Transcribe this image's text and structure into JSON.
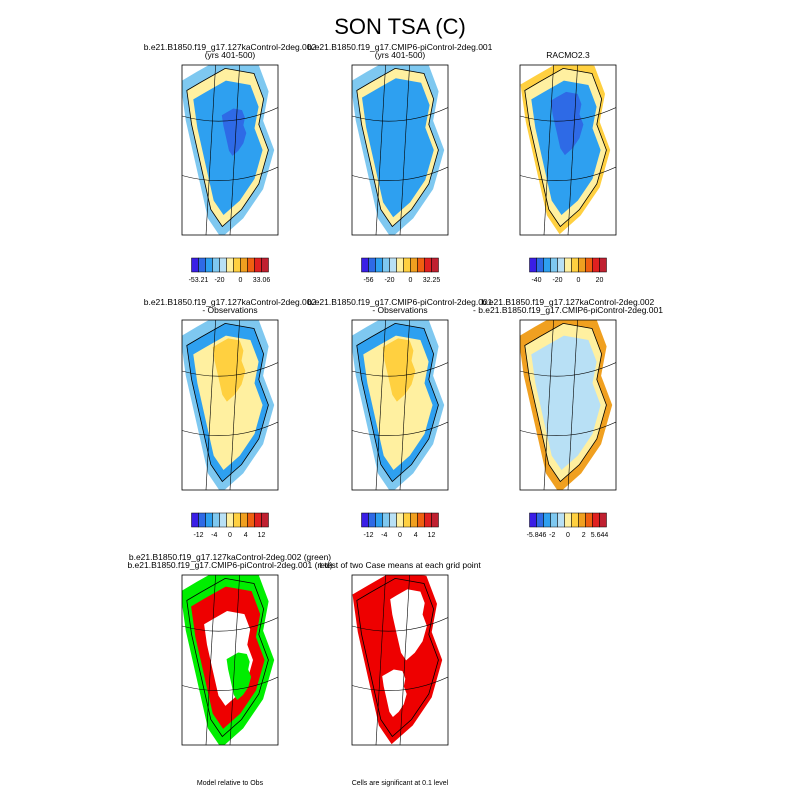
{
  "title": "SON TSA (C)",
  "colorbar_colors": [
    "#3a1ee6",
    "#2e6ae6",
    "#2ea0f0",
    "#7ec8f0",
    "#b8e0f5",
    "#fff0a0",
    "#ffd040",
    "#f0a020",
    "#f06010",
    "#e02020",
    "#c02030"
  ],
  "panels": [
    {
      "title": [
        "b.e21.B1850.f19_g17.127kaControl-2deg.002",
        "(yrs 401-500)"
      ],
      "colorbar_labels": [
        "-53.21",
        "-20",
        "0",
        "33.06"
      ]
    },
    {
      "title": [
        "b.e21.B1850.f19_g17.CMIP6-piControl-2deg.001",
        "(yrs 401-500)"
      ],
      "colorbar_labels": [
        "-56",
        "-20",
        "0",
        "32.25"
      ]
    },
    {
      "title": [
        "RACMO2.3"
      ],
      "colorbar_labels": [
        "-40",
        "-20",
        "0",
        "20"
      ]
    },
    {
      "title": [
        "b.e21.B1850.f19_g17.127kaControl-2deg.002",
        "- Observations"
      ],
      "colorbar_labels": [
        "-12",
        "-4",
        "0",
        "4",
        "12"
      ]
    },
    {
      "title": [
        "b.e21.B1850.f19_g17.CMIP6-piControl-2deg.001",
        "- Observations"
      ],
      "colorbar_labels": [
        "-12",
        "-4",
        "0",
        "4",
        "12"
      ]
    },
    {
      "title": [
        "b.e21.B1850.f19_g17.127kaControl-2deg.002",
        "- b.e21.B1850.f19_g17.CMIP6-piControl-2deg.001"
      ],
      "colorbar_labels": [
        "-5.846",
        "-2",
        "0",
        "2",
        "5.644"
      ]
    },
    {
      "title": [
        "b.e21.B1850.f19_g17.127kaControl-2deg.002 (green)",
        "b.e21.B1850.f19_g17.CMIP6-piControl-2deg.001 (red)"
      ],
      "note": "Model relative to Obs"
    },
    {
      "title": [
        "t-test of two Case means at each grid point"
      ],
      "note": "Cells are significant at 0.1 level"
    }
  ]
}
